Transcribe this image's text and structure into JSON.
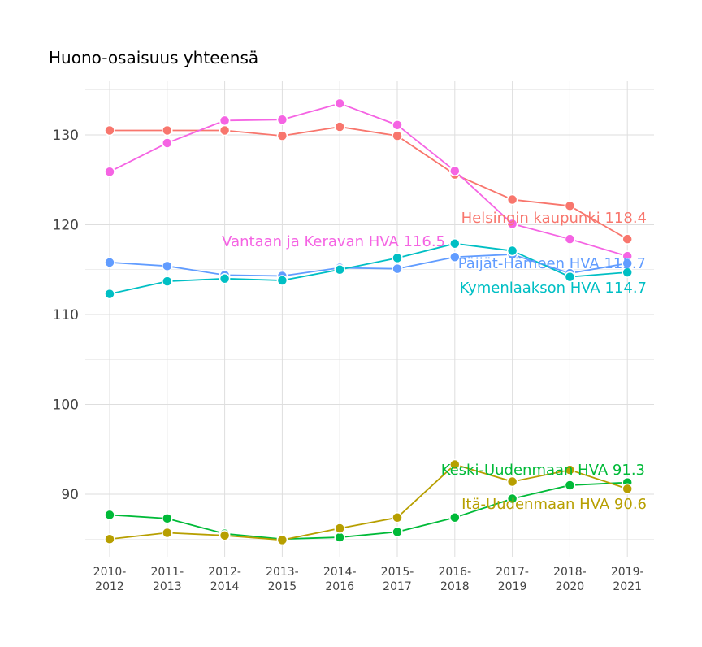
{
  "chart_data": {
    "type": "line",
    "title": "Huono-osaisuus yhteensä",
    "xlabel": "",
    "ylabel": "",
    "categories": [
      "2010-\n2012",
      "2011-\n2013",
      "2012-\n2014",
      "2013-\n2015",
      "2014-\n2016",
      "2015-\n2017",
      "2016-\n2018",
      "2017-\n2019",
      "2018-\n2020",
      "2019-\n2021"
    ],
    "yticks": [
      90,
      100,
      110,
      120,
      130
    ],
    "ylim": [
      82.5,
      137.5
    ],
    "grid": true,
    "legend": "none (direct end labels)",
    "series": [
      {
        "name": "Helsingin kaupunki",
        "label": "Helsingin kaupunki 118.4",
        "color": "#F8766D",
        "values": [
          130.5,
          130.5,
          130.5,
          129.9,
          130.9,
          129.9,
          125.6,
          122.8,
          122.1,
          118.4
        ]
      },
      {
        "name": "Vantaan ja Keravan HVA",
        "label": "Vantaan ja Keravan HVA 116.5",
        "color": "#F564E3",
        "values": [
          125.9,
          129.1,
          131.6,
          131.7,
          133.5,
          131.1,
          126.0,
          120.1,
          118.4,
          116.5
        ]
      },
      {
        "name": "Päijät-Hämeen HVA",
        "label": "Päijät-Hämeen HVA 115.7",
        "color": "#619CFF",
        "values": [
          115.8,
          115.4,
          114.4,
          114.3,
          115.2,
          115.1,
          116.4,
          116.7,
          114.6,
          115.7
        ]
      },
      {
        "name": "Kymenlaakson HVA",
        "label": "Kymenlaakson HVA 114.7",
        "color": "#00BFC4",
        "values": [
          112.3,
          113.7,
          114.0,
          113.8,
          115.0,
          116.3,
          117.9,
          117.1,
          114.2,
          114.7
        ]
      },
      {
        "name": "Keski-Uudenmaan HVA",
        "label": "Keski-Uudenmaan HVA 91.3",
        "color": "#00BA38",
        "values": [
          87.7,
          87.3,
          85.6,
          85.0,
          85.2,
          85.8,
          87.4,
          89.5,
          91.0,
          91.3
        ]
      },
      {
        "name": "Itä-Uudenmaan HVA",
        "label": "Itä-Uudenmaan HVA 90.6",
        "color": "#B79F00",
        "values": [
          85.0,
          85.7,
          85.4,
          84.9,
          86.2,
          87.4,
          93.3,
          91.4,
          92.7,
          90.6
        ]
      }
    ]
  }
}
